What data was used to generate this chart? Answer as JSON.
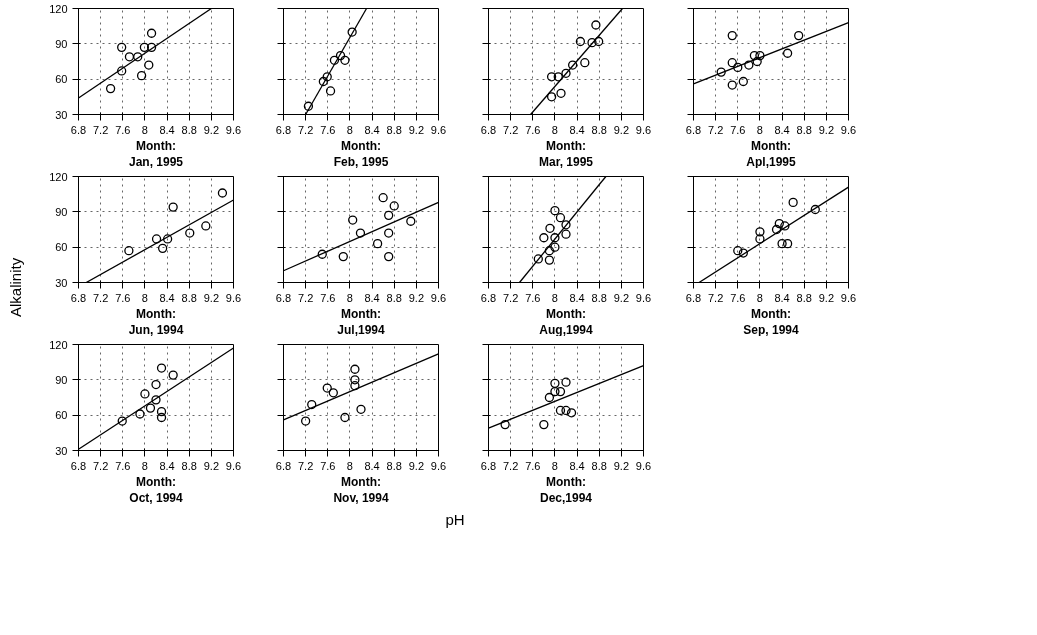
{
  "chart_data": [
    {
      "type": "scatter",
      "title": "Month: Jan, 1995",
      "xlim": [
        6.8,
        9.6
      ],
      "xticks": [
        6.8,
        7.2,
        7.6,
        8,
        8.4,
        8.8,
        9.2,
        9.6
      ],
      "ylim": [
        30,
        120
      ],
      "yticks": [
        30,
        60,
        90,
        120
      ],
      "grid": true,
      "series": [
        {
          "color": "#000000",
          "marker": "circle",
          "x": [
            7.38,
            7.58,
            7.58,
            7.72,
            7.87,
            7.94,
            7.99,
            8.07,
            8.12,
            8.12
          ],
          "values": [
            52,
            67,
            87,
            79,
            79,
            63,
            87,
            72,
            99,
            87
          ]
        },
        {
          "type": "line",
          "color": "#000000",
          "x": [
            6.8,
            9.2
          ],
          "values": [
            44,
            120
          ]
        }
      ]
    },
    {
      "type": "scatter",
      "title": "Month: Feb, 1995",
      "xlim": [
        6.8,
        9.6
      ],
      "xticks": [
        6.8,
        7.2,
        7.6,
        8,
        8.4,
        8.8,
        9.2,
        9.6
      ],
      "ylim": [
        30,
        120
      ],
      "yticks": [
        30,
        60,
        90,
        120
      ],
      "grid": true,
      "tick_labels": "x",
      "series": [
        {
          "color": "#000000",
          "marker": "circle",
          "x": [
            7.25,
            7.52,
            7.59,
            7.65,
            7.72,
            7.83,
            7.91,
            8.04
          ],
          "values": [
            37,
            58,
            62,
            50,
            76,
            80,
            76,
            100
          ]
        },
        {
          "type": "line",
          "color": "#000000",
          "x": [
            7.2,
            8.3
          ],
          "values": [
            30,
            120
          ]
        }
      ]
    },
    {
      "type": "scatter",
      "title": "Month: Mar, 1995",
      "xlim": [
        6.8,
        9.6
      ],
      "xticks": [
        6.8,
        7.2,
        7.6,
        8,
        8.4,
        8.8,
        9.2,
        9.6
      ],
      "ylim": [
        30,
        120
      ],
      "yticks": [
        30,
        60,
        90,
        120
      ],
      "grid": true,
      "tick_labels": "x",
      "series": [
        {
          "color": "#000000",
          "marker": "circle",
          "x": [
            7.94,
            8.11,
            7.94,
            8.06,
            8.2,
            8.32,
            8.54,
            8.46,
            8.67,
            8.79,
            8.74
          ],
          "values": [
            45,
            48,
            62,
            62,
            65,
            72,
            74,
            92,
            91,
            92,
            106
          ]
        },
        {
          "type": "line",
          "color": "#000000",
          "x": [
            7.56,
            9.22
          ],
          "values": [
            30,
            120
          ]
        }
      ]
    },
    {
      "type": "scatter",
      "title": "Month: Apl,1995",
      "xlim": [
        6.8,
        9.6
      ],
      "xticks": [
        6.8,
        7.2,
        7.6,
        8,
        8.4,
        8.8,
        9.2,
        9.6
      ],
      "ylim": [
        30,
        120
      ],
      "yticks": [
        30,
        60,
        90,
        120
      ],
      "grid": true,
      "tick_labels": "x",
      "series": [
        {
          "color": "#000000",
          "marker": "circle",
          "x": [
            7.3,
            7.5,
            7.5,
            7.5,
            7.6,
            7.7,
            7.8,
            7.9,
            7.95,
            8.0,
            8.5,
            8.7
          ],
          "values": [
            66,
            97,
            74,
            55,
            70,
            58,
            72,
            80,
            75,
            80,
            82,
            97
          ]
        },
        {
          "type": "line",
          "color": "#000000",
          "x": [
            6.8,
            9.6
          ],
          "values": [
            56,
            108
          ]
        }
      ]
    },
    {
      "type": "scatter",
      "title": "Month: Jun, 1994",
      "ylabel": "Alkalinity",
      "xlim": [
        6.8,
        9.6
      ],
      "xticks": [
        6.8,
        7.2,
        7.6,
        8,
        8.4,
        8.8,
        9.2,
        9.6
      ],
      "ylim": [
        30,
        120
      ],
      "yticks": [
        30,
        60,
        90,
        120
      ],
      "grid": true,
      "series": [
        {
          "color": "#000000",
          "marker": "circle",
          "x": [
            7.71,
            8.21,
            8.32,
            8.41,
            8.51,
            8.81,
            9.1,
            9.4
          ],
          "values": [
            57,
            67,
            59,
            67,
            94,
            72,
            78,
            106
          ]
        },
        {
          "type": "line",
          "color": "#000000",
          "x": [
            6.94,
            9.6
          ],
          "values": [
            30,
            100
          ]
        }
      ]
    },
    {
      "type": "scatter",
      "title": "Month: Jul,1994",
      "xlim": [
        6.8,
        9.6
      ],
      "xticks": [
        6.8,
        7.2,
        7.6,
        8,
        8.4,
        8.8,
        9.2,
        9.6
      ],
      "ylim": [
        30,
        120
      ],
      "yticks": [
        30,
        60,
        90,
        120
      ],
      "grid": true,
      "tick_labels": "x",
      "series": [
        {
          "color": "#000000",
          "marker": "circle",
          "x": [
            7.5,
            7.88,
            8.05,
            8.19,
            8.5,
            8.6,
            8.7,
            8.7,
            8.8,
            8.7,
            9.1
          ],
          "values": [
            54,
            52,
            83,
            72,
            63,
            102,
            87,
            72,
            95,
            52,
            82
          ]
        },
        {
          "type": "line",
          "color": "#000000",
          "x": [
            6.8,
            9.6
          ],
          "values": [
            40,
            98
          ]
        }
      ]
    },
    {
      "type": "scatter",
      "title": "Month: Aug,1994",
      "xlim": [
        6.8,
        9.6
      ],
      "xticks": [
        6.8,
        7.2,
        7.6,
        8,
        8.4,
        8.8,
        9.2,
        9.6
      ],
      "ylim": [
        30,
        120
      ],
      "yticks": [
        30,
        60,
        90,
        120
      ],
      "grid": true,
      "tick_labels": "x",
      "series": [
        {
          "color": "#000000",
          "marker": "circle",
          "x": [
            7.7,
            7.9,
            7.9,
            7.8,
            7.91,
            8.0,
            8.0,
            8.0,
            8.1,
            8.2,
            8.2
          ],
          "values": [
            50,
            49,
            57,
            68,
            76,
            68,
            60,
            91,
            85,
            79,
            71
          ]
        },
        {
          "type": "line",
          "color": "#000000",
          "x": [
            7.36,
            8.92
          ],
          "values": [
            30,
            120
          ]
        }
      ]
    },
    {
      "type": "scatter",
      "title": "Month: Sep, 1994",
      "xlim": [
        6.8,
        9.6
      ],
      "xticks": [
        6.8,
        7.2,
        7.6,
        8,
        8.4,
        8.8,
        9.2,
        9.6
      ],
      "ylim": [
        30,
        120
      ],
      "yticks": [
        30,
        60,
        90,
        120
      ],
      "grid": true,
      "tick_labels": "x",
      "series": [
        {
          "color": "#000000",
          "marker": "circle",
          "x": [
            7.6,
            7.7,
            8.0,
            8.0,
            8.3,
            8.35,
            8.45,
            8.4,
            8.5,
            8.6,
            9.0
          ],
          "values": [
            57,
            55,
            73,
            67,
            75,
            80,
            78,
            63,
            63,
            98,
            92
          ]
        },
        {
          "type": "line",
          "color": "#000000",
          "x": [
            6.9,
            9.6
          ],
          "values": [
            30,
            111
          ]
        }
      ]
    },
    {
      "type": "scatter",
      "title": "Month: Oct, 1994",
      "xlim": [
        6.8,
        9.6
      ],
      "xticks": [
        6.8,
        7.2,
        7.6,
        8,
        8.4,
        8.8,
        9.2,
        9.6
      ],
      "ylim": [
        30,
        120
      ],
      "yticks": [
        30,
        60,
        90,
        120
      ],
      "grid": true,
      "series": [
        {
          "color": "#000000",
          "marker": "circle",
          "x": [
            7.59,
            7.91,
            8.0,
            8.1,
            8.2,
            8.2,
            8.3,
            8.3,
            8.3,
            8.51
          ],
          "values": [
            55,
            61,
            78,
            66,
            73,
            86,
            100,
            63,
            58,
            94
          ]
        },
        {
          "type": "line",
          "color": "#000000",
          "x": [
            6.8,
            9.6
          ],
          "values": [
            31,
            117
          ]
        }
      ]
    },
    {
      "type": "scatter",
      "title": "Month: Nov, 1994",
      "xlabel": "pH",
      "xlim": [
        6.8,
        9.6
      ],
      "xticks": [
        6.8,
        7.2,
        7.6,
        8,
        8.4,
        8.8,
        9.2,
        9.6
      ],
      "ylim": [
        30,
        120
      ],
      "yticks": [
        30,
        60,
        90,
        120
      ],
      "grid": true,
      "tick_labels": "x",
      "series": [
        {
          "color": "#000000",
          "marker": "circle",
          "x": [
            7.2,
            7.31,
            7.59,
            7.7,
            7.91,
            8.09,
            8.09,
            8.09,
            8.2
          ],
          "values": [
            55,
            69,
            83,
            79,
            58,
            99,
            90,
            85,
            65
          ]
        },
        {
          "type": "line",
          "color": "#000000",
          "x": [
            6.8,
            9.6
          ],
          "values": [
            56,
            112
          ]
        }
      ]
    },
    {
      "type": "scatter",
      "title": "Month: Dec,1994",
      "xlim": [
        6.8,
        9.6
      ],
      "xticks": [
        6.8,
        7.2,
        7.6,
        8,
        8.4,
        8.8,
        9.2,
        9.6
      ],
      "ylim": [
        30,
        120
      ],
      "yticks": [
        30,
        60,
        90,
        120
      ],
      "grid": true,
      "tick_labels": "x",
      "series": [
        {
          "color": "#000000",
          "marker": "circle",
          "x": [
            7.1,
            7.8,
            7.9,
            8.0,
            8.0,
            8.1,
            8.1,
            8.2,
            8.2,
            8.3
          ],
          "values": [
            52,
            52,
            75,
            80,
            87,
            80,
            64,
            64,
            88,
            62
          ]
        },
        {
          "type": "line",
          "color": "#000000",
          "x": [
            6.8,
            9.6
          ],
          "values": [
            49,
            102
          ]
        }
      ]
    }
  ]
}
